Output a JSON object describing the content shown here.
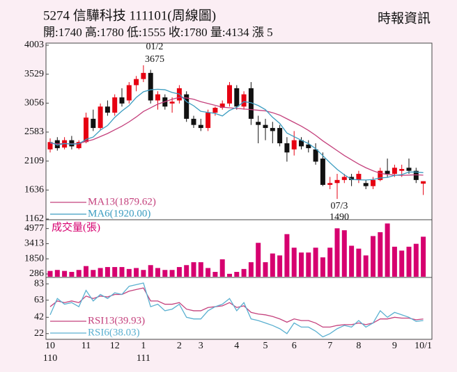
{
  "header": {
    "title": "5274 信驊科技 111101(周線圖)",
    "quote": "開:1740 高:1780 低:1555 收:1780 量:4134 漲 5",
    "source": "時報資訊"
  },
  "chart_data": [
    {
      "type": "candlestick",
      "categories": [
        "10",
        null,
        null,
        null,
        null,
        "11",
        null,
        null,
        null,
        "12",
        null,
        null,
        null,
        "1",
        null,
        null,
        null,
        null,
        "2",
        null,
        null,
        "3",
        null,
        null,
        null,
        null,
        "4",
        null,
        null,
        null,
        "5",
        null,
        null,
        null,
        "6",
        null,
        null,
        null,
        null,
        "7",
        null,
        null,
        null,
        "8",
        null,
        null,
        null,
        null,
        "9",
        null,
        null,
        null,
        "10/1"
      ],
      "year_labels": [
        "110",
        null,
        null,
        null,
        null,
        null,
        null,
        null,
        null,
        null,
        null,
        null,
        null,
        "111",
        null,
        null,
        null,
        null,
        null,
        null,
        null,
        null,
        null,
        null,
        null,
        null,
        null,
        null,
        null,
        null,
        null,
        null,
        null,
        null,
        null,
        null,
        null,
        null,
        null,
        null,
        null,
        null,
        null,
        null,
        null,
        null,
        null,
        null,
        null,
        null,
        null,
        null,
        null
      ],
      "open": [
        2300,
        2450,
        2330,
        2450,
        2320,
        2420,
        2800,
        2650,
        3000,
        2900,
        3150,
        3100,
        3350,
        3450,
        3550,
        3100,
        3150,
        3050,
        3100,
        3200,
        2800,
        2700,
        2650,
        2900,
        2980,
        3050,
        3300,
        3000,
        3300,
        2750,
        2700,
        2650,
        2650,
        2400,
        2300,
        2450,
        2380,
        2300,
        2150,
        1720,
        1750,
        1800,
        1850,
        1800,
        1750,
        1700,
        1800,
        1950,
        1900,
        1950,
        2000,
        1950,
        1740
      ],
      "high": [
        2480,
        2500,
        2500,
        2520,
        2450,
        2900,
        2950,
        3050,
        3100,
        3200,
        3300,
        3400,
        3500,
        3675,
        3600,
        3250,
        3200,
        3150,
        3350,
        3250,
        2850,
        2800,
        2950,
        3000,
        3100,
        3400,
        3350,
        3250,
        3400,
        2850,
        2800,
        2750,
        2700,
        2500,
        2600,
        2500,
        2450,
        2400,
        2250,
        1850,
        1900,
        1900,
        1900,
        1950,
        1800,
        1850,
        2000,
        2150,
        2050,
        2050,
        2150,
        2000,
        1780
      ],
      "low": [
        2250,
        2280,
        2300,
        2300,
        2300,
        2400,
        2600,
        2620,
        2850,
        2850,
        3000,
        3050,
        3250,
        3400,
        3050,
        2950,
        2950,
        2900,
        3050,
        2750,
        2650,
        2600,
        2600,
        2850,
        2950,
        3000,
        2950,
        2950,
        2700,
        2400,
        2450,
        2400,
        2350,
        2100,
        2200,
        2300,
        2250,
        2050,
        1700,
        1650,
        1490,
        1750,
        1700,
        1750,
        1650,
        1650,
        1780,
        1850,
        1850,
        1850,
        1900,
        1750,
        1555
      ],
      "close": [
        2420,
        2320,
        2450,
        2350,
        2420,
        2820,
        2650,
        3000,
        2900,
        3150,
        3050,
        3350,
        3450,
        3550,
        3100,
        3200,
        3000,
        3080,
        3300,
        2800,
        2700,
        2650,
        2900,
        2980,
        3050,
        3350,
        3000,
        3200,
        2800,
        2700,
        2650,
        2600,
        2400,
        2250,
        2450,
        2350,
        2320,
        2100,
        1720,
        1750,
        1800,
        1850,
        1800,
        1900,
        1700,
        1800,
        1950,
        1900,
        2000,
        1980,
        1950,
        1800,
        1780
      ],
      "up_color": "#e60012",
      "down_color": "#111111",
      "series": [
        {
          "name": "MA13(1879.62)",
          "color": "#c4407c",
          "values": [
            2400,
            2390,
            2395,
            2390,
            2395,
            2430,
            2460,
            2510,
            2560,
            2620,
            2680,
            2750,
            2830,
            2920,
            2980,
            3040,
            3080,
            3120,
            3150,
            3140,
            3120,
            3080,
            3050,
            3020,
            2990,
            2980,
            2970,
            2960,
            2950,
            2940,
            2930,
            2900,
            2860,
            2800,
            2740,
            2680,
            2610,
            2530,
            2440,
            2360,
            2280,
            2200,
            2130,
            2060,
            2000,
            1950,
            1910,
            1890,
            1880,
            1875,
            1880,
            1885,
            1879.62
          ]
        },
        {
          "name": "MA6(1920.00)",
          "color": "#3a9cc0",
          "values": [
            2420,
            2370,
            2397,
            2385,
            2392,
            2463,
            2502,
            2615,
            2690,
            2823,
            2928,
            3017,
            3150,
            3242,
            3275,
            3283,
            3275,
            3230,
            3205,
            3080,
            3013,
            2922,
            2905,
            2888,
            2847,
            2938,
            2988,
            3080,
            3063,
            3017,
            2950,
            2825,
            2725,
            2567,
            2508,
            2450,
            2395,
            2312,
            2198,
            2082,
            1973,
            1885,
            1810,
            1803,
            1800,
            1808,
            1833,
            1842,
            1875,
            1888,
            1930,
            1930,
            1920
          ]
        }
      ],
      "annotations": [
        "01/2",
        "3675",
        "07/3",
        "1490"
      ],
      "ylim": [
        1162,
        4003
      ],
      "yticks": [
        1162,
        1636,
        2109,
        2583,
        3056,
        3529,
        4003
      ]
    },
    {
      "type": "bar",
      "title": "成交量(張)",
      "color": "#d6006f",
      "values": [
        600,
        700,
        600,
        500,
        700,
        1100,
        700,
        900,
        1000,
        1000,
        1000,
        800,
        900,
        700,
        1200,
        900,
        700,
        700,
        1000,
        1200,
        1500,
        1500,
        900,
        500,
        1800,
        300,
        500,
        800,
        1500,
        3500,
        1500,
        2400,
        2200,
        4400,
        3000,
        2500,
        2500,
        3000,
        2000,
        3000,
        5000,
        4800,
        3200,
        2900,
        2200,
        4200,
        4600,
        5500,
        3100,
        2700,
        3100,
        3400,
        4134
      ],
      "ylim": [
        0,
        5600
      ],
      "yticks": [
        286,
        1850,
        3413,
        4977
      ]
    },
    {
      "type": "line",
      "series": [
        {
          "name": "RSI13(39.93)",
          "color": "#c4407c",
          "values": [
            55,
            62,
            60,
            62,
            60,
            68,
            65,
            68,
            67,
            70,
            70,
            74,
            76,
            78,
            62,
            62,
            58,
            58,
            60,
            52,
            50,
            50,
            54,
            55,
            56,
            60,
            54,
            56,
            48,
            46,
            45,
            43,
            40,
            36,
            40,
            38,
            38,
            35,
            30,
            30,
            32,
            33,
            33,
            35,
            33,
            35,
            40,
            40,
            42,
            41,
            41,
            39,
            39.93
          ]
        },
        {
          "name": "RSI6(38.03)",
          "color": "#5ab0d0",
          "values": [
            45,
            65,
            58,
            60,
            55,
            75,
            62,
            70,
            65,
            72,
            70,
            80,
            82,
            84,
            55,
            58,
            50,
            52,
            58,
            42,
            40,
            40,
            50,
            55,
            58,
            65,
            50,
            60,
            40,
            38,
            35,
            32,
            28,
            22,
            35,
            30,
            30,
            25,
            18,
            22,
            28,
            32,
            30,
            38,
            30,
            35,
            50,
            42,
            48,
            45,
            42,
            37,
            38.03
          ]
        }
      ],
      "ylim": [
        15,
        90
      ],
      "yticks": [
        22,
        42,
        63,
        83
      ]
    }
  ]
}
